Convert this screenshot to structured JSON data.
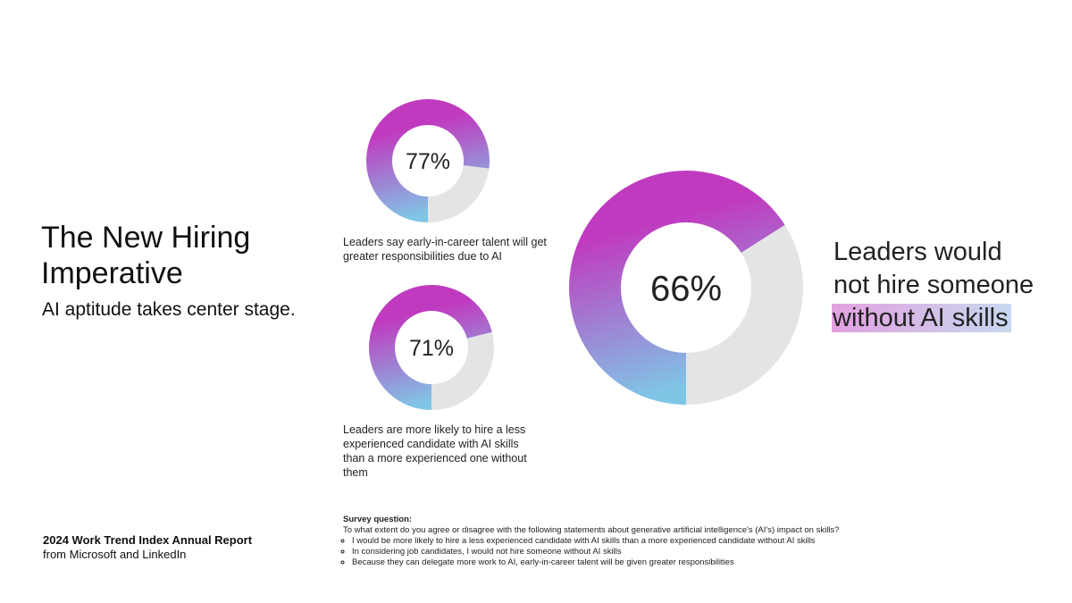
{
  "header": {
    "title": "The New Hiring Imperative",
    "subtitle": "AI aptitude takes center stage."
  },
  "source": {
    "line1": "2024 Work Trend Index Annual Report",
    "line2": "from Microsoft and LinkedIn"
  },
  "colors": {
    "gradient_top": "#c03abf",
    "gradient_bottom": "#7fc6e6",
    "remainder": "#e4e4e4"
  },
  "chart_data": [
    {
      "type": "pie",
      "style": "donut",
      "value": 77,
      "label": "77%",
      "caption": "Leaders say early-in-career talent will get greater responsibilities due to AI"
    },
    {
      "type": "pie",
      "style": "donut",
      "value": 71,
      "label": "71%",
      "caption": "Leaders are more likely to hire a less experienced candidate with AI skills than a more experienced one without them"
    },
    {
      "type": "pie",
      "style": "donut",
      "value": 66,
      "label": "66%",
      "caption_line1": "Leaders would",
      "caption_line2": "not hire someone",
      "caption_highlight": "without AI skills"
    }
  ],
  "survey": {
    "heading": "Survey question:",
    "question": "To what extent do you agree or disagree with the following statements about generative artificial intelligence's (AI's) impact on skills?",
    "items": [
      "I would be more likely to hire a less experienced candidate with AI skills than a more experienced candidate without AI skills",
      "In considering job candidates, I would not hire someone without AI skills",
      "Because they can delegate more work to AI, early-in-career talent will be given greater responsibilities"
    ]
  }
}
